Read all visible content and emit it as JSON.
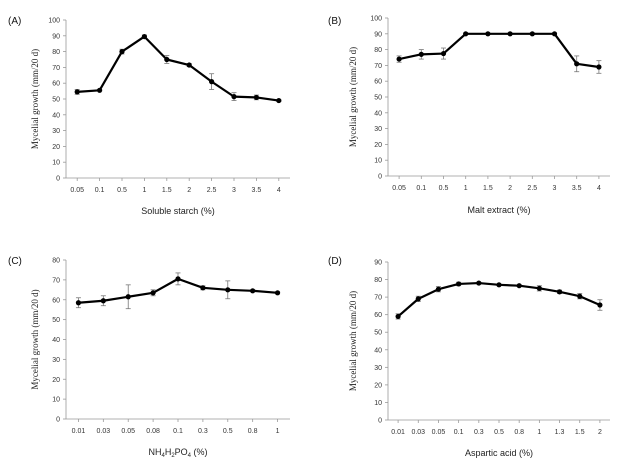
{
  "chart_data": [
    {
      "type": "line",
      "panel_label": "(A)",
      "xlabel": "Soluble starch (%)",
      "ylabel": "Mycelial growth (mm/20 d)",
      "categories": [
        "0.05",
        "0.1",
        "0.5",
        "1",
        "1.5",
        "2",
        "2.5",
        "3",
        "3.5",
        "4"
      ],
      "values": [
        54.5,
        55.5,
        80,
        89.5,
        75,
        71.5,
        61,
        51.5,
        51,
        49
      ],
      "errors": [
        1.5,
        0.5,
        1.5,
        1,
        2.5,
        1,
        5,
        2.5,
        1.5,
        0.5
      ],
      "ylim": [
        0,
        100
      ],
      "yticks": [
        0,
        10,
        20,
        30,
        40,
        50,
        60,
        70,
        80,
        90,
        100
      ]
    },
    {
      "type": "line",
      "panel_label": "(B)",
      "xlabel": "Malt extract (%)",
      "ylabel": "Mycelial growth (mm/20 d)",
      "categories": [
        "0.05",
        "0.1",
        "0.5",
        "1",
        "1.5",
        "2",
        "2.5",
        "3",
        "3.5",
        "4"
      ],
      "values": [
        74,
        77,
        77.5,
        90,
        90,
        90,
        90,
        90,
        71,
        69
      ],
      "errors": [
        2,
        3,
        3.5,
        0.5,
        0.5,
        0.5,
        0.5,
        0.5,
        5,
        4
      ],
      "ylim": [
        0,
        100
      ],
      "yticks": [
        0,
        10,
        20,
        30,
        40,
        50,
        60,
        70,
        80,
        90,
        100
      ]
    },
    {
      "type": "line",
      "panel_label": "(C)",
      "xlabel": "NH4H2PO4 (%)",
      "xlabel_parts": [
        "NH",
        "4",
        "H",
        "2",
        "PO",
        "4",
        " (%)"
      ],
      "ylabel": "Mycelial growth (mm/20 d)",
      "categories": [
        "0.01",
        "0.03",
        "0.05",
        "0.08",
        "0.1",
        "0.3",
        "0.5",
        "0.8",
        "1"
      ],
      "values": [
        58.5,
        59.5,
        61.5,
        63.5,
        70.5,
        66,
        65,
        64.5,
        63.5
      ],
      "errors": [
        2.5,
        2.5,
        6,
        1.5,
        3,
        1,
        4.5,
        0.5,
        0.5
      ],
      "ylim": [
        0,
        80
      ],
      "yticks": [
        0,
        10,
        20,
        30,
        40,
        50,
        60,
        70,
        80
      ]
    },
    {
      "type": "line",
      "panel_label": "(D)",
      "xlabel": "Aspartic acid (%)",
      "ylabel": "Mycelial growth (mm/20 d)",
      "categories": [
        "0.01",
        "0.03",
        "0.05",
        "0.1",
        "0.3",
        "0.5",
        "0.8",
        "1",
        "1.3",
        "1.5",
        "2"
      ],
      "values": [
        59,
        69,
        74.5,
        77.5,
        78,
        77,
        76.5,
        75,
        73,
        70.5,
        65.5
      ],
      "errors": [
        1.5,
        1.5,
        1.5,
        1,
        0.5,
        0.5,
        0.5,
        1.5,
        1,
        1.5,
        3
      ],
      "ylim": [
        0,
        90
      ],
      "yticks": [
        0,
        10,
        20,
        30,
        40,
        50,
        60,
        70,
        80,
        90
      ]
    }
  ]
}
